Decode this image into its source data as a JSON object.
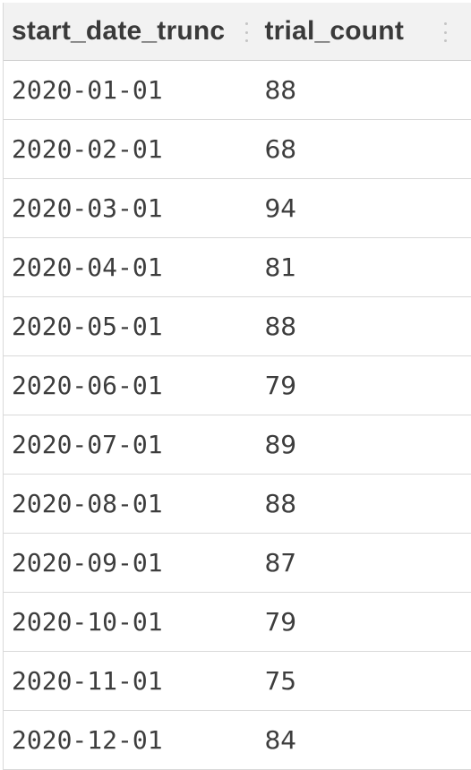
{
  "table": {
    "columns": [
      "start_date_trunc",
      "trial_count"
    ],
    "rows": [
      {
        "start_date_trunc": "2020-01-01",
        "trial_count": "88"
      },
      {
        "start_date_trunc": "2020-02-01",
        "trial_count": "68"
      },
      {
        "start_date_trunc": "2020-03-01",
        "trial_count": "94"
      },
      {
        "start_date_trunc": "2020-04-01",
        "trial_count": "81"
      },
      {
        "start_date_trunc": "2020-05-01",
        "trial_count": "88"
      },
      {
        "start_date_trunc": "2020-06-01",
        "trial_count": "79"
      },
      {
        "start_date_trunc": "2020-07-01",
        "trial_count": "89"
      },
      {
        "start_date_trunc": "2020-08-01",
        "trial_count": "88"
      },
      {
        "start_date_trunc": "2020-09-01",
        "trial_count": "87"
      },
      {
        "start_date_trunc": "2020-10-01",
        "trial_count": "79"
      },
      {
        "start_date_trunc": "2020-11-01",
        "trial_count": "75"
      },
      {
        "start_date_trunc": "2020-12-01",
        "trial_count": "84"
      }
    ]
  }
}
